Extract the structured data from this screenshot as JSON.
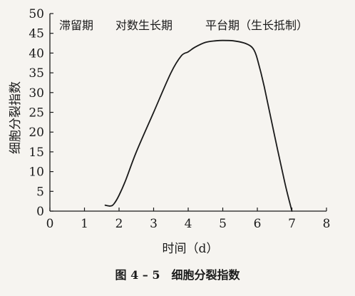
{
  "chart_data": {
    "type": "line",
    "xlabel": "时间（d）",
    "ylabel": "细胞分裂指数",
    "caption": "图 4 – 5　细胞分裂指数",
    "xlim": [
      0,
      8
    ],
    "ylim": [
      0,
      50
    ],
    "x_ticks": [
      "0",
      "1",
      "2",
      "3",
      "4",
      "5",
      "6",
      "7",
      "8"
    ],
    "y_ticks": [
      "0",
      "5",
      "10",
      "15",
      "20",
      "25",
      "30",
      "35",
      "40",
      "45",
      "50"
    ],
    "phase_labels": [
      "滞留期",
      "对数生长期",
      "平台期（生长抵制）"
    ],
    "grid": false,
    "legend": "none",
    "line_color": "#1a1a1a",
    "series": [
      {
        "x": [
          1.6,
          1.75,
          1.85,
          2.0,
          2.2,
          2.5,
          3.0,
          3.5,
          3.8,
          4.0,
          4.2,
          4.5,
          4.8,
          5.0,
          5.3,
          5.6,
          5.8,
          5.9,
          6.0,
          6.2,
          6.5,
          6.8,
          7.0
        ],
        "y": [
          1.5,
          1.3,
          1.8,
          4,
          8,
          15,
          25,
          35,
          39.3,
          40.3,
          41.5,
          42.7,
          43.1,
          43.2,
          43.1,
          42.6,
          41.8,
          40.8,
          38.5,
          31.5,
          19,
          7,
          0
        ]
      }
    ]
  }
}
